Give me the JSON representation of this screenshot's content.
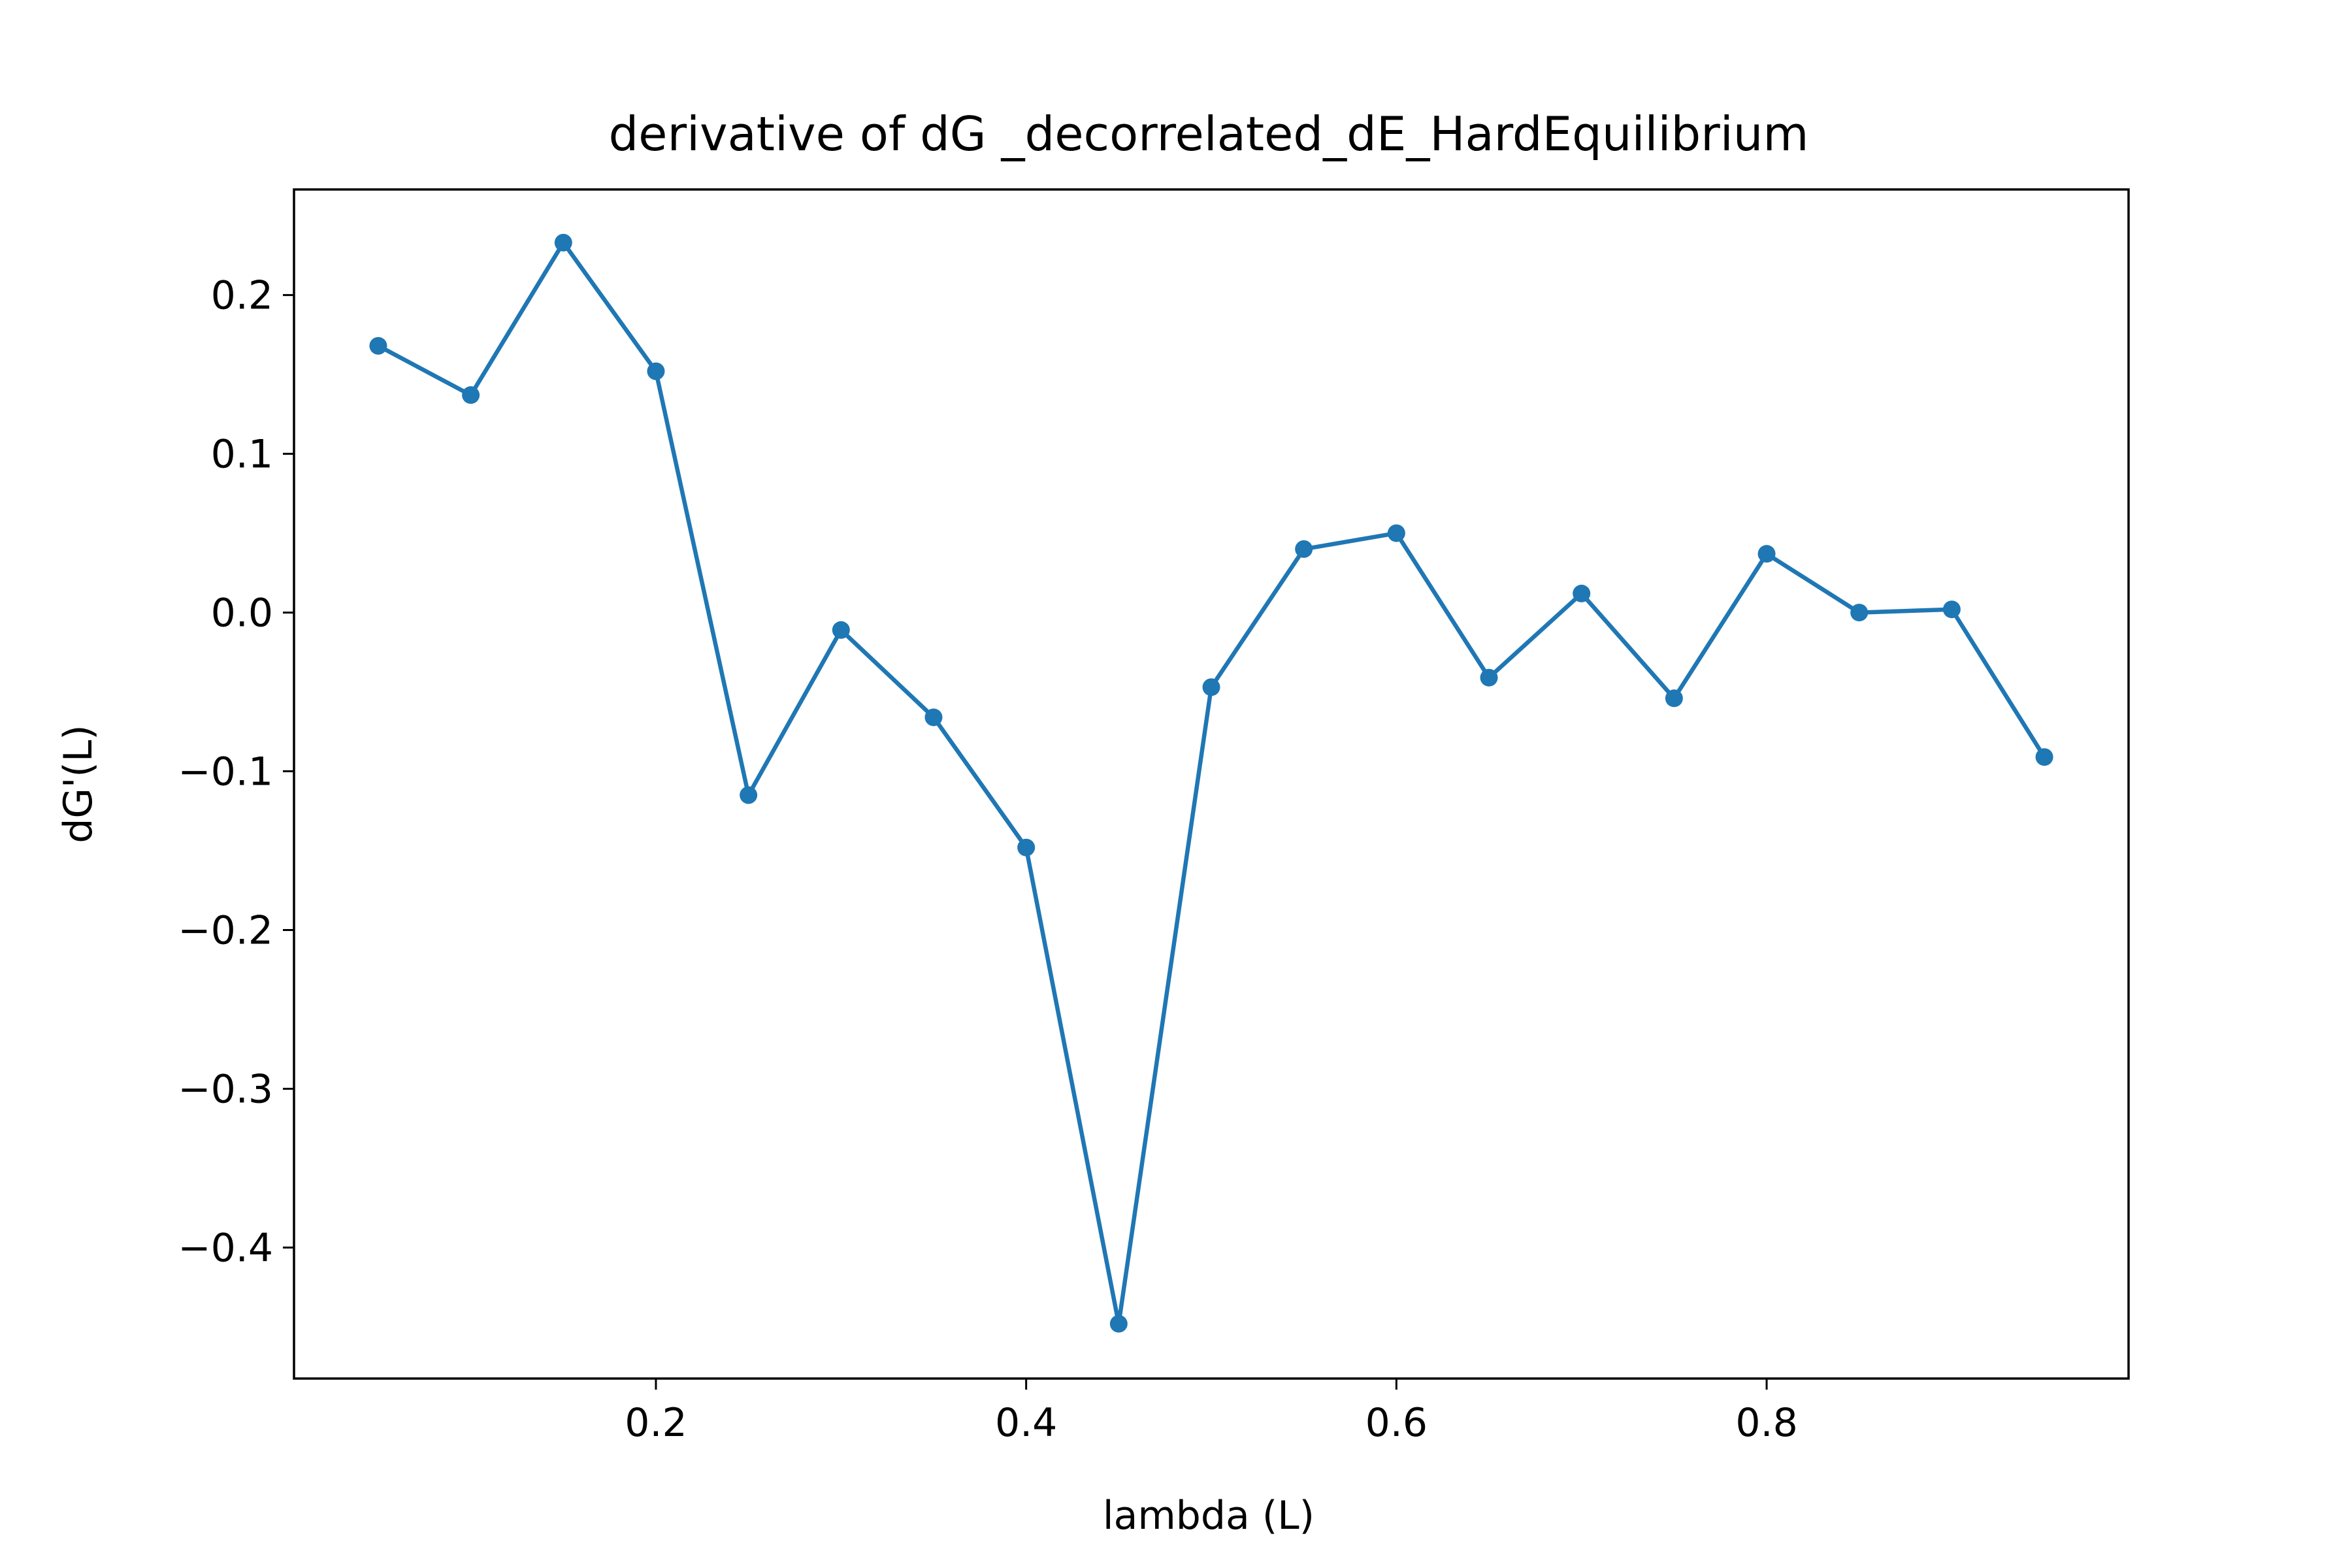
{
  "chart_data": {
    "type": "line",
    "title": "derivative of dG _decorrelated_dE_HardEquilibrium",
    "xlabel": "lambda (L)",
    "ylabel": "dG'(L)",
    "xlim": [
      0.0045,
      0.9955
    ],
    "ylim": [
      -0.4825,
      0.2665
    ],
    "xticks": [
      0.2,
      0.4,
      0.6,
      0.8
    ],
    "xtick_labels": [
      "0.2",
      "0.4",
      "0.6",
      "0.8"
    ],
    "yticks": [
      -0.4,
      -0.3,
      -0.2,
      -0.1,
      0.0,
      0.1,
      0.2
    ],
    "ytick_labels": [
      "−0.4",
      "−0.3",
      "−0.2",
      "−0.1",
      "0.0",
      "0.1",
      "0.2"
    ],
    "grid": false,
    "series": [
      {
        "color": "#1f77b4",
        "marker": "circle",
        "x": [
          0.05,
          0.1,
          0.15,
          0.2,
          0.25,
          0.3,
          0.35,
          0.4,
          0.45,
          0.5,
          0.55,
          0.6,
          0.65,
          0.7,
          0.75,
          0.8,
          0.85,
          0.9,
          0.95
        ],
        "y": [
          0.168,
          0.137,
          0.233,
          0.152,
          -0.115,
          -0.011,
          -0.066,
          -0.148,
          -0.448,
          -0.047,
          0.04,
          0.05,
          -0.041,
          0.012,
          -0.054,
          0.037,
          0.0,
          0.002,
          -0.091
        ]
      }
    ]
  }
}
